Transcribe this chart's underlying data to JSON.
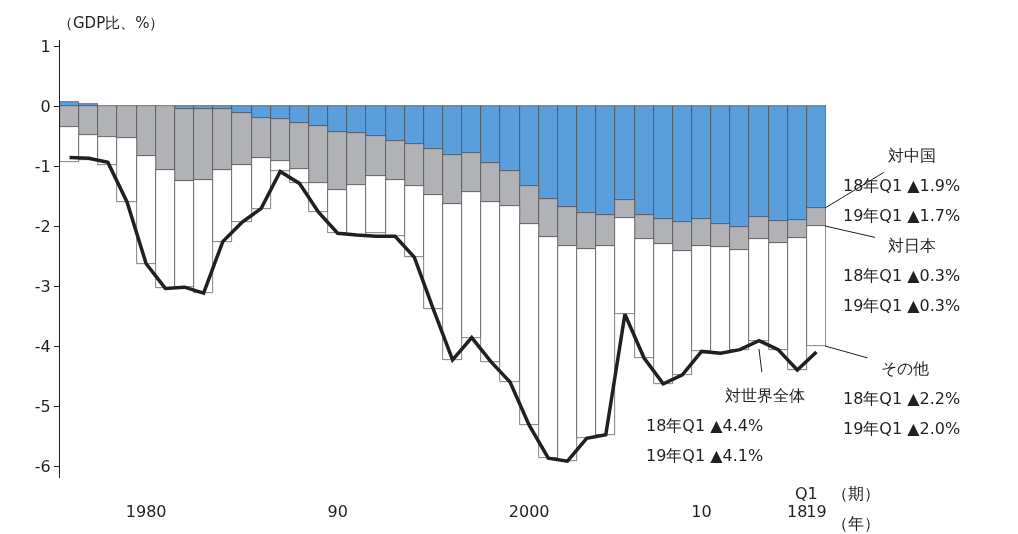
{
  "chart_data": {
    "type": "bar",
    "stacked": true,
    "ylabel": "（GDP比、%）",
    "categories": [
      null,
      null,
      null,
      null,
      "1980",
      null,
      null,
      null,
      null,
      null,
      null,
      null,
      null,
      null,
      "90",
      null,
      null,
      null,
      null,
      null,
      null,
      null,
      null,
      null,
      "2000",
      null,
      null,
      null,
      null,
      null,
      null,
      null,
      null,
      "10",
      null,
      null,
      null,
      null,
      "18",
      "19"
    ],
    "ylim": [
      -6.2,
      1.1
    ],
    "yticks": [
      1,
      0,
      -1,
      -2,
      -3,
      -4,
      -5,
      -6
    ],
    "legend": false,
    "marker": "none",
    "series": [
      {
        "color": "#5a9fdc",
        "values": [
          0.07,
          0.03,
          null,
          null,
          null,
          null,
          -0.05,
          -0.05,
          -0.05,
          -0.12,
          -0.2,
          -0.22,
          -0.29,
          -0.34,
          -0.43,
          -0.45,
          -0.5,
          -0.59,
          -0.63,
          -0.72,
          -0.82,
          -0.79,
          -0.95,
          -1.09,
          -1.34,
          -1.55,
          -1.68,
          -1.78,
          -1.82,
          -1.57,
          -1.82,
          -1.89,
          -1.93,
          -1.89,
          -1.97,
          -2.01,
          -1.85,
          -1.91,
          -1.9,
          -1.7
        ]
      },
      {
        "color": "#b1b2b6",
        "values": [
          -0.35,
          -0.48,
          -0.52,
          -0.54,
          -0.84,
          -1.07,
          -1.2,
          -1.18,
          -1.02,
          -0.86,
          -0.66,
          -0.69,
          -0.76,
          -0.94,
          -0.97,
          -0.87,
          -0.67,
          -0.64,
          -0.71,
          -0.77,
          -0.81,
          -0.64,
          -0.65,
          -0.58,
          -0.63,
          -0.64,
          -0.65,
          -0.6,
          -0.51,
          -0.29,
          -0.39,
          -0.41,
          -0.48,
          -0.44,
          -0.38,
          -0.39,
          -0.36,
          -0.38,
          -0.3,
          -0.3
        ]
      },
      {
        "color": "#ffffff",
        "values": [
          -0.59,
          -0.42,
          -0.46,
          -1.06,
          -1.79,
          -1.97,
          -1.77,
          -1.89,
          -1.19,
          -0.96,
          -0.85,
          -0.18,
          -0.24,
          -0.49,
          -0.72,
          -0.83,
          -0.95,
          -0.94,
          -1.18,
          -1.9,
          -2.6,
          -2.43,
          -2.66,
          -2.93,
          -3.35,
          -3.68,
          -3.59,
          -3.16,
          -3.15,
          -1.61,
          -1.99,
          -2.33,
          -2.07,
          -1.76,
          -1.77,
          -1.66,
          -1.7,
          -1.77,
          -2.2,
          -2.0
        ]
      },
      {
        "type": "line",
        "color": "#231f20",
        "values": [
          -0.86,
          -0.87,
          -0.94,
          -1.6,
          -2.63,
          -3.04,
          -3.02,
          -3.12,
          -2.26,
          -1.94,
          -1.71,
          -1.09,
          -1.29,
          -1.77,
          -2.12,
          -2.15,
          -2.17,
          -2.17,
          -2.52,
          -3.39,
          -4.23,
          -3.86,
          -4.26,
          -4.6,
          -5.32,
          -5.87,
          -5.92,
          -5.54,
          -5.48,
          -3.47,
          -4.2,
          -4.63,
          -4.48,
          -4.09,
          -4.12,
          -4.06,
          -3.91,
          -4.06,
          -4.4,
          -4.1
        ]
      }
    ],
    "annotations": [
      {
        "text": "対中国",
        "x": "19",
        "y": -1.7
      },
      "18年Q1 ▲1.9%",
      "19年Q1 ▲1.7%",
      {
        "text": "対日本",
        "x": "19",
        "y": -2.0
      },
      "18年Q1 ▲0.3%",
      "19年Q1 ▲0.3%",
      {
        "text": "その他",
        "x": "19",
        "y": -4.0
      },
      "18年Q1 ▲2.2%",
      "19年Q1 ▲2.0%",
      {
        "text": "対世界全体",
        "y": -4.05
      },
      "18年Q1 ▲4.4%",
      "19年Q1 ▲4.1%",
      "Q1",
      "（期）",
      "（年）"
    ]
  }
}
